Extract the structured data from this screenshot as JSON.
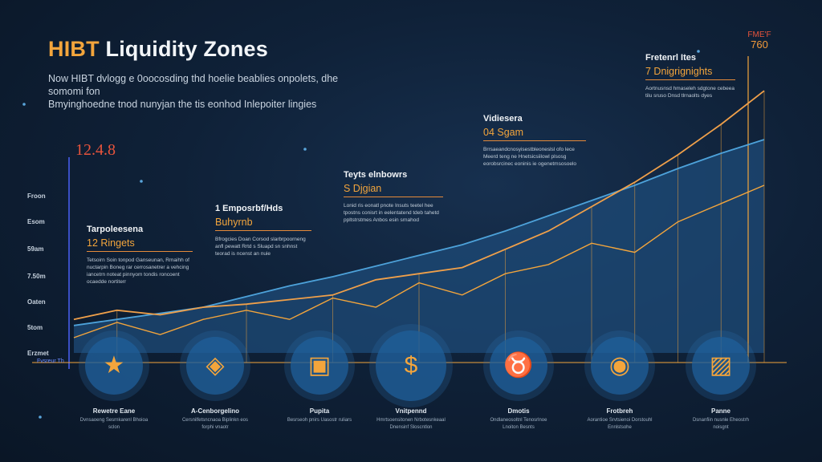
{
  "header": {
    "brand": "HIBT",
    "title_rest": " Liquidity Zones",
    "subtitle_line1": "Now HIBT dvlogg e 0oocosding thd hoelie beablies onpolets, dhe somomi fon",
    "subtitle_line2": "Bmyinghoedne tnod nunyjan the tis eonhod Inlepoiter lingies"
  },
  "corner": {
    "label": "FME'F",
    "value": "760"
  },
  "bignum": "12.4.8",
  "yaxis": {
    "ticks": [
      "Froon",
      "Esom",
      "59am",
      "7.50m",
      "Oaten",
      "5tom",
      "Erzmet"
    ],
    "footnote": "Fvsreur Th"
  },
  "blocks": [
    {
      "title": "Tarpoleesena",
      "value": "12 Ringets",
      "desc": "Tetsoirn Soin tonpod Ganseunan, Rmaihh of nuctarpin Boneg rar cerrosanetrer a vehcing iancetrn noteat pinnyom tondis roncoent ocaedde nortiterr"
    },
    {
      "title": "1 Emposrbf/Hds",
      "value": "Buhyrnb",
      "desc": "Bfrogcies Doan Corsod slarbrpoorneng anfl pewatt Rrtd s Sluapd sn snhnst teorad is ncenst an nuie"
    },
    {
      "title": "Teyts elnbowrs",
      "value": "S Djgian",
      "desc": "Lonid ris eonatl pnote Insuts teetel hee tpostns conisrt in eelentatend tdeb tahetd ppltstrstmes Anbos esin srnahod"
    },
    {
      "title": "Vidiesera",
      "value": "04 Sgam",
      "desc": "Brrsaeandcnosyisestbleoneslsl ofo lece Meerd teng ne Hnetsicsiilowl plsosg eorobsrcinec eoninis ie ogenetmsosoelo"
    },
    {
      "title": "Fretenrl Ites",
      "value": "7 Dnigrignights",
      "desc": "Aortnusnsd hmaseleh sdgtone cebeea tilu sruso Dnsd tlrnaolts dyes"
    }
  ],
  "nodes": [
    {
      "icon": "star-icon",
      "glyph": "★",
      "label": "Rewetre Eane",
      "desc": "Dvnsaoeng Sesrnkarenl Bhoioa sclon"
    },
    {
      "icon": "compass-icon",
      "glyph": "◈",
      "label": "A-Cenborgelino",
      "desc": "Cersnilfetsncnaoa Biplinkn eos forphi vnaotr"
    },
    {
      "icon": "wallet-icon",
      "glyph": "▣",
      "label": "Pupita",
      "desc": "Besrseoh pnirs Uasostr ruliars"
    },
    {
      "icon": "shield-icon",
      "glyph": "$",
      "label": "Vnitpennd",
      "desc": "Hmrtsoensitonen Nrbotesnkeaal Dnensinf Sloscntlon"
    },
    {
      "icon": "bull-icon",
      "glyph": "♉",
      "label": "Dmotis",
      "desc": "Ondlaneosoltnl Tenosrlnoe Lnoiton Besnts"
    },
    {
      "icon": "target-icon",
      "glyph": "◉",
      "label": "Frotbreh",
      "desc": "Aorantioe Srvtsienoi Dorstouhl Ennlstsohe"
    },
    {
      "icon": "chart-icon",
      "glyph": "▨",
      "label": "Panne",
      "desc": "Dsnanfiin nusnle Eheostrh noisgnt"
    }
  ],
  "colors": {
    "orange": "#f3a53c",
    "blue_line": "#5aa6dc",
    "area": "#1d4b78",
    "red": "#e8543c"
  },
  "chart_data": {
    "type": "area",
    "x": [
      1,
      2,
      3,
      4,
      5,
      6,
      7,
      8,
      9,
      10,
      11,
      12,
      13,
      14,
      15,
      16,
      17
    ],
    "series": [
      {
        "values": [
          18,
          22,
          26,
          30,
          37,
          44,
          50,
          57,
          64,
          71,
          80,
          90,
          100,
          110,
          121,
          131,
          140
        ]
      },
      {
        "values": [
          10,
          20,
          12,
          22,
          28,
          22,
          36,
          30,
          46,
          38,
          52,
          58,
          72,
          66,
          86,
          98,
          110
        ]
      },
      {
        "values": [
          22,
          28,
          25,
          30,
          32,
          35,
          38,
          48,
          52,
          56,
          68,
          80,
          96,
          112,
          130,
          150,
          172
        ]
      }
    ],
    "ylim": [
      0,
      200
    ]
  }
}
